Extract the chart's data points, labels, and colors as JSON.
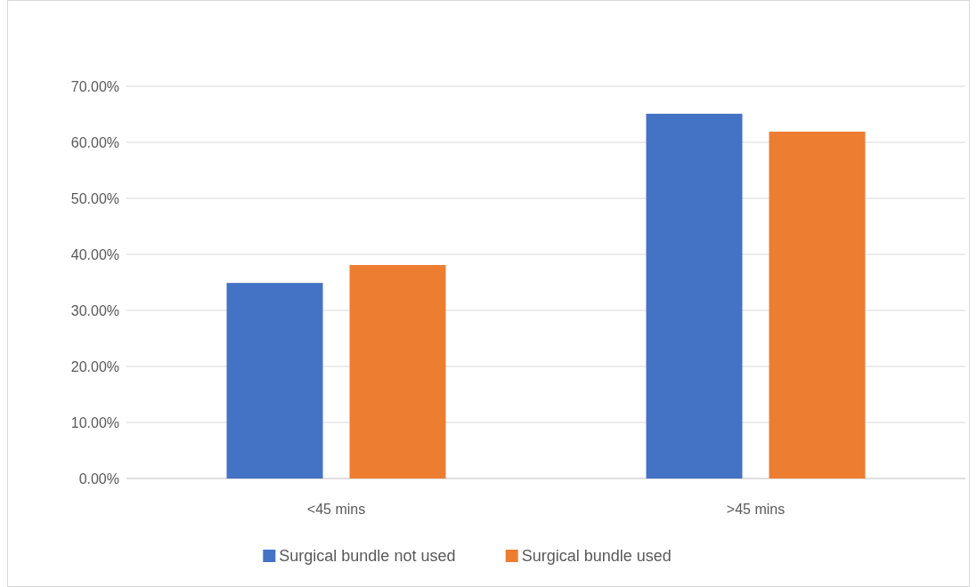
{
  "chart_data": {
    "type": "bar",
    "categories": [
      "<45 mins",
      ">45 mins"
    ],
    "series": [
      {
        "name": "Surgical bundle not used",
        "color": "#4472c4",
        "values": [
          34.9,
          65.1
        ]
      },
      {
        "name": "Surgical bundle used",
        "color": "#ed7d31",
        "values": [
          38.1,
          61.9
        ]
      }
    ],
    "ylim": [
      0,
      70
    ],
    "yticks": [
      {
        "value": 0,
        "label": "0.00%"
      },
      {
        "value": 10,
        "label": "10.00%"
      },
      {
        "value": 20,
        "label": "20.00%"
      },
      {
        "value": 30,
        "label": "30.00%"
      },
      {
        "value": 40,
        "label": "40.00%"
      },
      {
        "value": 50,
        "label": "50.00%"
      },
      {
        "value": 60,
        "label": "60.00%"
      },
      {
        "value": 70,
        "label": "70.00%"
      }
    ],
    "grid": "y",
    "legend": "bottom"
  }
}
